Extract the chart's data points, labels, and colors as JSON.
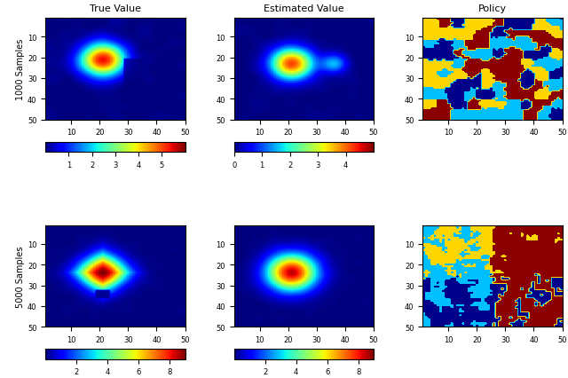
{
  "title_row1_col1": "True Value",
  "title_row1_col2": "Estimated Value",
  "title_row1_col3": "Policy",
  "ylabel_row1": "1000 Samples",
  "ylabel_row2": "5000 Samples",
  "colorbar1_ticks": [
    1,
    2,
    3,
    4,
    5
  ],
  "colorbar2_ticks": [
    0,
    1,
    2,
    3,
    4
  ],
  "colorbar3_ticks": [
    2,
    4,
    6,
    8
  ],
  "colorbar4_ticks": [
    2,
    4,
    6,
    8
  ],
  "axis_ticks": [
    10,
    20,
    30,
    40,
    50
  ],
  "grid_size": 50,
  "policy_colors": [
    "#00008B",
    "#00BFFF",
    "#FFD700",
    "#8B0000"
  ],
  "seed_policy1": 42,
  "seed_policy2": 123,
  "seed_heatmap1_true": 10,
  "seed_heatmap1_est": 20,
  "seed_heatmap2_true": 30,
  "seed_heatmap2_est": 40
}
